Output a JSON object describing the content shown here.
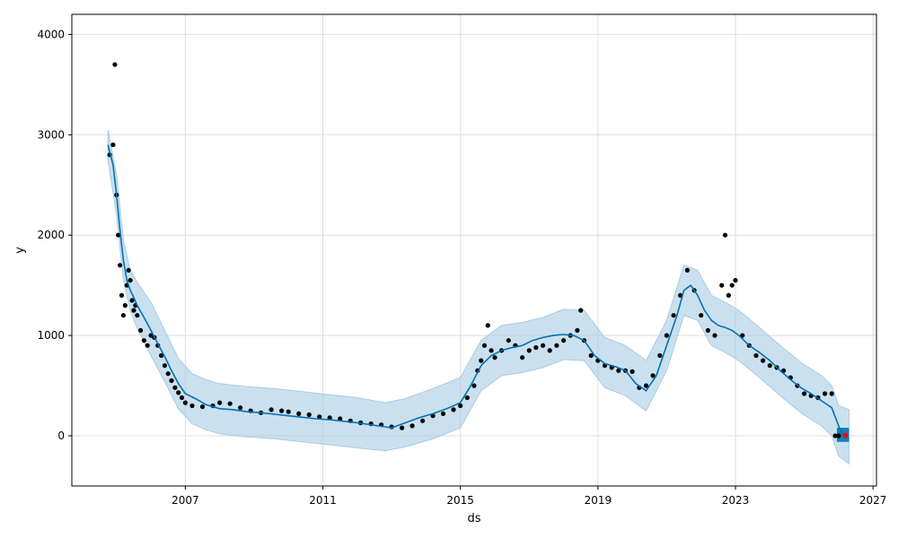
{
  "chart_data": {
    "type": "line",
    "title": "",
    "xlabel": "ds",
    "ylabel": "y",
    "xlim": [
      2003.7,
      2027.1
    ],
    "ylim": [
      -500,
      4200
    ],
    "grid": true,
    "x_ticks": [
      {
        "value": 2007,
        "label": "2007"
      },
      {
        "value": 2011,
        "label": "2011"
      },
      {
        "value": 2015,
        "label": "2015"
      },
      {
        "value": 2019,
        "label": "2019"
      },
      {
        "value": 2023,
        "label": "2023"
      },
      {
        "value": 2027,
        "label": "2027"
      }
    ],
    "y_ticks": [
      {
        "value": 0,
        "label": "0"
      },
      {
        "value": 1000,
        "label": "1000"
      },
      {
        "value": 2000,
        "label": "2000"
      },
      {
        "value": 3000,
        "label": "3000"
      },
      {
        "value": 4000,
        "label": "4000"
      }
    ],
    "colors": {
      "observed": "#000000",
      "forecast": "#0072B2",
      "uncertainty": "#a9cbe3",
      "uncertainty_future": "#0072B2",
      "highlight": "#ff0000",
      "grid": "#dddddd"
    },
    "series": [
      {
        "role": "observed",
        "x": [
          2004.8,
          2004.9,
          2004.95,
          2005.0,
          2005.05,
          2005.1,
          2005.15,
          2005.2,
          2005.25,
          2005.3,
          2005.35,
          2005.4,
          2005.45,
          2005.5,
          2005.55,
          2005.6,
          2005.7,
          2005.8,
          2005.9,
          2006.0,
          2006.1,
          2006.2,
          2006.3,
          2006.4,
          2006.5,
          2006.6,
          2006.7,
          2006.8,
          2006.9,
          2007.0,
          2007.2,
          2007.5,
          2007.8,
          2008.0,
          2008.3,
          2008.6,
          2008.9,
          2009.2,
          2009.5,
          2009.8,
          2010.0,
          2010.3,
          2010.6,
          2010.9,
          2011.2,
          2011.5,
          2011.8,
          2012.1,
          2012.4,
          2012.7,
          2013.0,
          2013.3,
          2013.6,
          2013.9,
          2014.2,
          2014.5,
          2014.8,
          2015.0,
          2015.2,
          2015.4,
          2015.5,
          2015.6,
          2015.7,
          2015.8,
          2015.9,
          2016.0,
          2016.2,
          2016.4,
          2016.6,
          2016.8,
          2017.0,
          2017.2,
          2017.4,
          2017.6,
          2017.8,
          2018.0,
          2018.2,
          2018.4,
          2018.5,
          2018.6,
          2018.8,
          2019.0,
          2019.2,
          2019.4,
          2019.6,
          2019.8,
          2020.0,
          2020.2,
          2020.4,
          2020.6,
          2020.8,
          2021.0,
          2021.2,
          2021.4,
          2021.6,
          2021.8,
          2022.0,
          2022.2,
          2022.4,
          2022.6,
          2022.7,
          2022.8,
          2022.9,
          2023.0,
          2023.2,
          2023.4,
          2023.6,
          2023.8,
          2024.0,
          2024.2,
          2024.4,
          2024.6,
          2024.8,
          2025.0,
          2025.2,
          2025.4,
          2025.6,
          2025.8,
          2025.9,
          2026.0
        ],
        "y": [
          2800,
          2900,
          3700,
          2400,
          2000,
          1700,
          1400,
          1200,
          1300,
          1500,
          1650,
          1550,
          1350,
          1250,
          1300,
          1200,
          1050,
          950,
          900,
          1000,
          980,
          900,
          800,
          700,
          620,
          550,
          480,
          430,
          380,
          330,
          300,
          290,
          300,
          330,
          320,
          280,
          250,
          230,
          260,
          250,
          240,
          220,
          210,
          190,
          180,
          170,
          150,
          130,
          120,
          110,
          90,
          80,
          100,
          150,
          200,
          220,
          260,
          300,
          380,
          500,
          650,
          750,
          900,
          1100,
          850,
          780,
          850,
          950,
          900,
          780,
          850,
          880,
          900,
          850,
          900,
          950,
          1000,
          1050,
          1250,
          950,
          800,
          750,
          700,
          680,
          650,
          650,
          640,
          480,
          500,
          600,
          800,
          1000,
          1200,
          1400,
          1650,
          1450,
          1200,
          1050,
          1000,
          1500,
          2000,
          1400,
          1500,
          1550,
          1000,
          900,
          800,
          750,
          700,
          680,
          650,
          580,
          500,
          420,
          400,
          380,
          420,
          420,
          0,
          0
        ]
      },
      {
        "role": "forecast",
        "x": [
          2004.75,
          2004.9,
          2005.0,
          2005.1,
          2005.2,
          2005.3,
          2005.4,
          2005.5,
          2005.6,
          2005.8,
          2006.0,
          2006.2,
          2006.4,
          2006.6,
          2006.8,
          2007.0,
          2007.3,
          2007.6,
          2008.0,
          2008.4,
          2008.8,
          2009.2,
          2009.6,
          2010.0,
          2010.4,
          2010.8,
          2011.2,
          2011.6,
          2012.0,
          2012.4,
          2012.8,
          2013.0,
          2013.4,
          2013.8,
          2014.2,
          2014.6,
          2015.0,
          2015.3,
          2015.6,
          2015.9,
          2016.2,
          2016.5,
          2016.8,
          2017.1,
          2017.4,
          2017.7,
          2018.0,
          2018.3,
          2018.6,
          2018.9,
          2019.2,
          2019.5,
          2019.8,
          2020.1,
          2020.4,
          2020.7,
          2021.0,
          2021.3,
          2021.5,
          2021.7,
          2021.9,
          2022.1,
          2022.3,
          2022.5,
          2022.7,
          2022.9,
          2023.1,
          2023.4,
          2023.7,
          2024.0,
          2024.3,
          2024.6,
          2024.9,
          2025.2,
          2025.5,
          2025.8,
          2026.0,
          2026.1,
          2026.2,
          2026.3
        ],
        "y": [
          2900,
          2700,
          2400,
          2050,
          1750,
          1550,
          1450,
          1380,
          1300,
          1180,
          1050,
          920,
          790,
          650,
          520,
          420,
          370,
          310,
          270,
          260,
          240,
          230,
          215,
          200,
          185,
          170,
          160,
          145,
          130,
          110,
          90,
          80,
          130,
          180,
          220,
          270,
          330,
          500,
          700,
          800,
          850,
          880,
          900,
          950,
          980,
          1000,
          1010,
          1000,
          950,
          800,
          720,
          690,
          650,
          520,
          450,
          600,
          900,
          1200,
          1450,
          1500,
          1400,
          1250,
          1150,
          1100,
          1080,
          1050,
          1000,
          900,
          830,
          750,
          650,
          560,
          480,
          420,
          350,
          280,
          100,
          20,
          -10,
          -30
        ]
      },
      {
        "role": "uncertainty_upper",
        "x": [
          2004.75,
          2005.0,
          2005.2,
          2005.4,
          2005.6,
          2006.0,
          2006.4,
          2006.8,
          2007.2,
          2007.6,
          2008.0,
          2008.8,
          2009.6,
          2010.4,
          2011.2,
          2012.0,
          2012.8,
          2013.4,
          2014.2,
          2015.0,
          2015.6,
          2016.2,
          2016.8,
          2017.4,
          2018.0,
          2018.6,
          2019.2,
          2019.8,
          2020.4,
          2021.0,
          2021.5,
          2021.9,
          2022.3,
          2022.7,
          2023.1,
          2023.7,
          2024.3,
          2024.9,
          2025.5,
          2025.8,
          2026.0,
          2026.3
        ],
        "y": [
          3050,
          2600,
          1950,
          1650,
          1530,
          1330,
          1050,
          770,
          620,
          560,
          520,
          490,
          470,
          440,
          410,
          380,
          330,
          370,
          470,
          580,
          950,
          1100,
          1130,
          1180,
          1260,
          1250,
          980,
          900,
          750,
          1150,
          1700,
          1650,
          1400,
          1330,
          1250,
          1080,
          900,
          730,
          600,
          500,
          300,
          260
        ]
      },
      {
        "role": "uncertainty_lower",
        "x": [
          2004.75,
          2005.0,
          2005.2,
          2005.4,
          2005.6,
          2006.0,
          2006.4,
          2006.8,
          2007.2,
          2007.6,
          2008.0,
          2008.8,
          2009.6,
          2010.4,
          2011.2,
          2012.0,
          2012.8,
          2013.4,
          2014.2,
          2015.0,
          2015.6,
          2016.2,
          2016.8,
          2017.4,
          2018.0,
          2018.6,
          2019.2,
          2019.8,
          2020.4,
          2021.0,
          2021.5,
          2021.9,
          2022.3,
          2022.7,
          2023.1,
          2023.7,
          2024.3,
          2024.9,
          2025.5,
          2025.8,
          2026.0,
          2026.3
        ],
        "y": [
          2750,
          2200,
          1550,
          1250,
          1070,
          800,
          540,
          270,
          120,
          60,
          20,
          -10,
          -30,
          -60,
          -90,
          -120,
          -150,
          -110,
          -30,
          80,
          450,
          600,
          630,
          680,
          760,
          750,
          480,
          400,
          250,
          650,
          1200,
          1150,
          900,
          830,
          750,
          580,
          400,
          230,
          100,
          0,
          -200,
          -280
        ]
      },
      {
        "role": "highlight",
        "x": [
          2026.2
        ],
        "y": [
          5
        ]
      }
    ]
  }
}
